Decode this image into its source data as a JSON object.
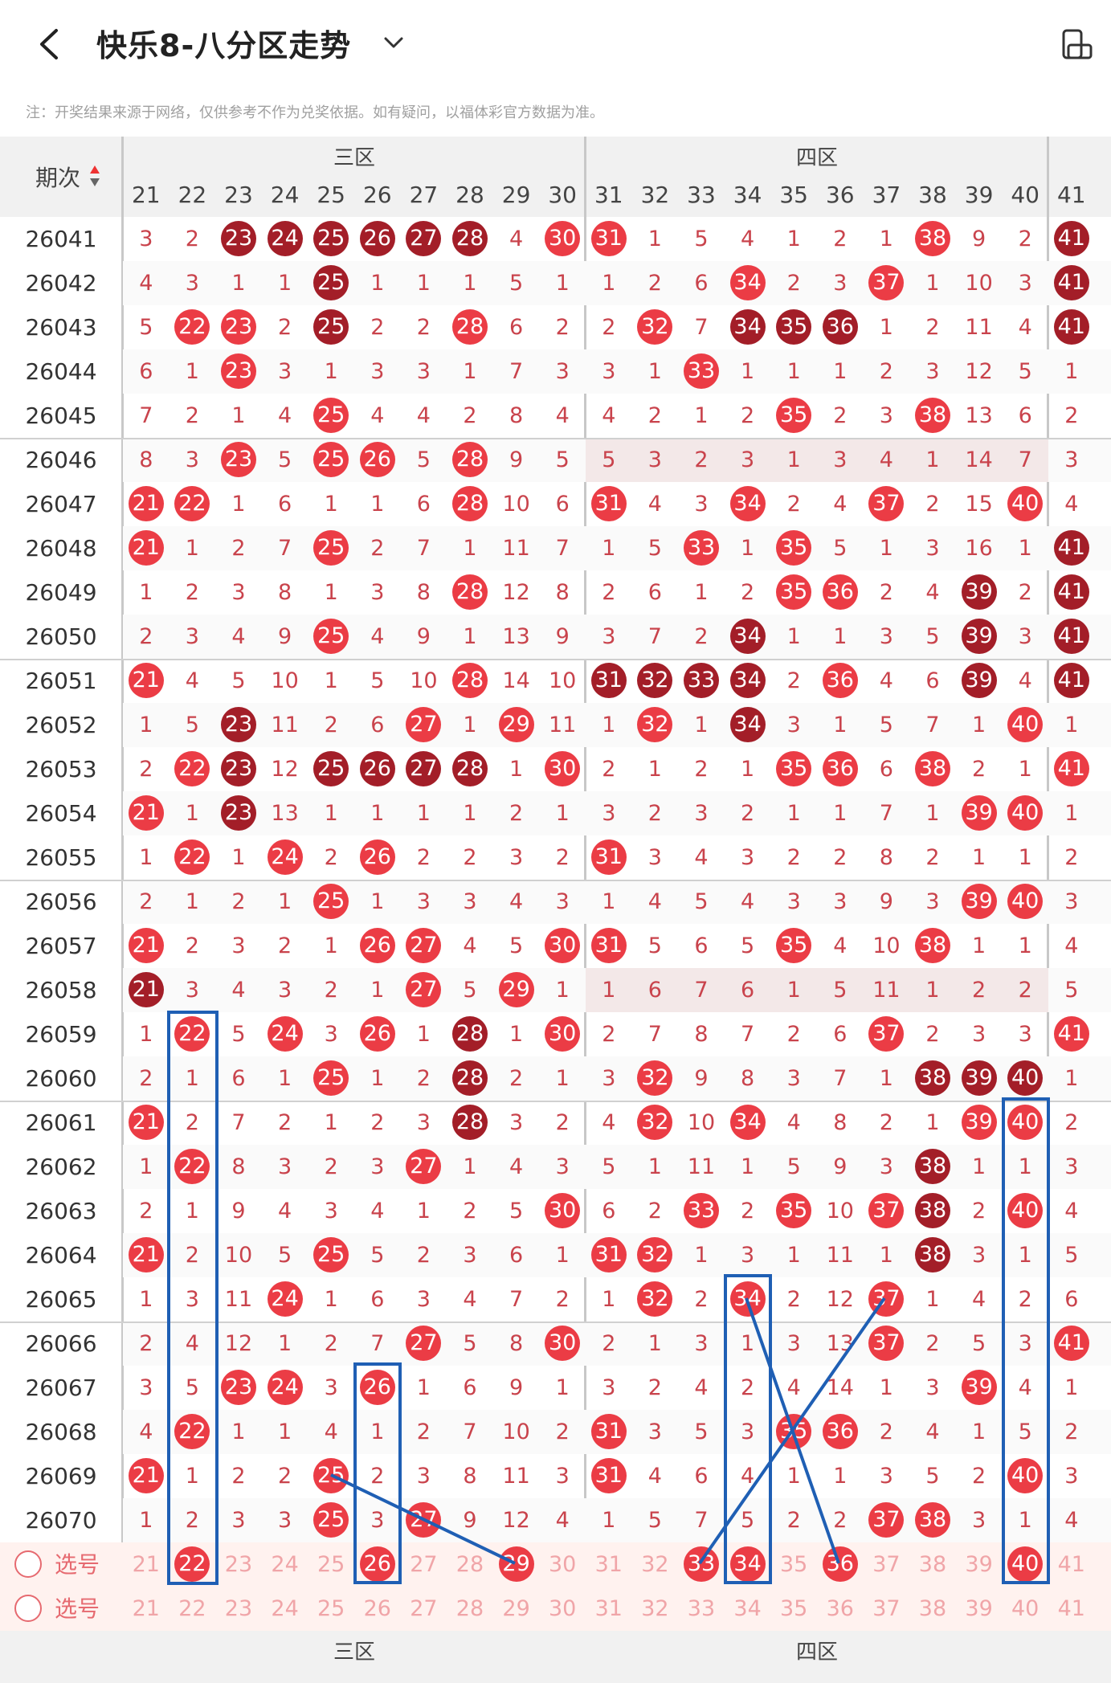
{
  "header": {
    "title": "快乐8-八分区走势",
    "notice": "注：开奖结果来源于网络，仅供参考不作为兑奖依据。如有疑问，以福体彩官方数据为准。",
    "back_icon": "chevron-left-icon",
    "dropdown_icon": "chevron-down-icon",
    "rotate_icon": "screen-rotate-icon"
  },
  "table": {
    "period_header": "期次",
    "zones": [
      "三区",
      "四区"
    ],
    "columns": [
      21,
      22,
      23,
      24,
      25,
      26,
      27,
      28,
      29,
      30,
      31,
      32,
      33,
      34,
      35,
      36,
      37,
      38,
      39,
      40,
      41
    ],
    "rows": [
      {
        "id": "26041",
        "cells": [
          3,
          2,
          "c23",
          "c24",
          "c25",
          "c26",
          "c27",
          "c28",
          4,
          "h30",
          "h31",
          1,
          5,
          4,
          1,
          2,
          1,
          "h38",
          9,
          2,
          "c41"
        ]
      },
      {
        "id": "26042",
        "cells": [
          4,
          3,
          1,
          1,
          "c25",
          1,
          1,
          1,
          5,
          1,
          1,
          2,
          6,
          "h34",
          2,
          3,
          "h37",
          1,
          10,
          3,
          "c41"
        ]
      },
      {
        "id": "26043",
        "cells": [
          5,
          "h22",
          "h23",
          2,
          "c25",
          2,
          2,
          "h28",
          6,
          2,
          2,
          "h32",
          7,
          "c34",
          "c35",
          "c36",
          1,
          2,
          11,
          4,
          "c41"
        ]
      },
      {
        "id": "26044",
        "cells": [
          6,
          1,
          "h23",
          3,
          1,
          3,
          3,
          1,
          7,
          3,
          3,
          1,
          "h33",
          1,
          1,
          1,
          2,
          3,
          12,
          5,
          1
        ]
      },
      {
        "id": "26045",
        "cells": [
          7,
          2,
          1,
          4,
          "h25",
          4,
          4,
          2,
          8,
          4,
          4,
          2,
          1,
          2,
          "h35",
          2,
          3,
          "h38",
          13,
          6,
          2
        ]
      },
      {
        "id": "26046",
        "cells": [
          8,
          3,
          "h23",
          5,
          "h25",
          "h26",
          5,
          "h28",
          9,
          5,
          5,
          3,
          2,
          3,
          1,
          3,
          4,
          1,
          14,
          7,
          3
        ]
      },
      {
        "id": "26047",
        "cells": [
          "h21",
          "h22",
          1,
          6,
          1,
          1,
          6,
          "h28",
          10,
          6,
          "h31",
          4,
          3,
          "h34",
          2,
          4,
          "h37",
          2,
          15,
          "h40",
          4
        ]
      },
      {
        "id": "26048",
        "cells": [
          "h21",
          1,
          2,
          7,
          "h25",
          2,
          7,
          1,
          11,
          7,
          1,
          5,
          "h33",
          1,
          "h35",
          5,
          1,
          3,
          16,
          1,
          "c41"
        ]
      },
      {
        "id": "26049",
        "cells": [
          1,
          2,
          3,
          8,
          1,
          3,
          8,
          "h28",
          12,
          8,
          2,
          6,
          1,
          2,
          "h35",
          "h36",
          2,
          4,
          "c39",
          2,
          "c41"
        ]
      },
      {
        "id": "26050",
        "cells": [
          2,
          3,
          4,
          9,
          "h25",
          4,
          9,
          1,
          13,
          9,
          3,
          7,
          2,
          "c34",
          1,
          1,
          3,
          5,
          "c39",
          3,
          "c41"
        ]
      },
      {
        "id": "26051",
        "cells": [
          "h21",
          4,
          5,
          10,
          1,
          5,
          10,
          "h28",
          14,
          10,
          "c31",
          "c32",
          "c33",
          "c34",
          2,
          "h36",
          4,
          6,
          "c39",
          4,
          "c41"
        ]
      },
      {
        "id": "26052",
        "cells": [
          1,
          5,
          "c23",
          11,
          2,
          6,
          "h27",
          1,
          "h29",
          11,
          1,
          "h32",
          1,
          "c34",
          3,
          1,
          5,
          7,
          1,
          "h40",
          1
        ]
      },
      {
        "id": "26053",
        "cells": [
          2,
          "h22",
          "c23",
          12,
          "c25",
          "c26",
          "c27",
          "c28",
          1,
          "h30",
          2,
          1,
          2,
          1,
          "h35",
          "h36",
          6,
          "h38",
          2,
          1,
          "h41"
        ]
      },
      {
        "id": "26054",
        "cells": [
          "h21",
          1,
          "c23",
          13,
          1,
          1,
          1,
          1,
          2,
          1,
          3,
          2,
          3,
          2,
          1,
          1,
          7,
          1,
          "h39",
          "h40",
          1
        ]
      },
      {
        "id": "26055",
        "cells": [
          1,
          "h22",
          1,
          "h24",
          2,
          "h26",
          2,
          2,
          3,
          2,
          "h31",
          3,
          4,
          3,
          2,
          2,
          8,
          2,
          1,
          1,
          2
        ]
      },
      {
        "id": "26056",
        "cells": [
          2,
          1,
          2,
          1,
          "h25",
          1,
          3,
          3,
          4,
          3,
          1,
          4,
          5,
          4,
          3,
          3,
          9,
          3,
          "h39",
          "h40",
          3
        ]
      },
      {
        "id": "26057",
        "cells": [
          "h21",
          2,
          3,
          2,
          1,
          "h26",
          "h27",
          4,
          5,
          "h30",
          "h31",
          5,
          6,
          5,
          "h35",
          4,
          10,
          "h38",
          1,
          1,
          4
        ]
      },
      {
        "id": "26058",
        "cells": [
          "c21",
          3,
          4,
          3,
          2,
          1,
          "h27",
          5,
          "h29",
          1,
          1,
          6,
          7,
          6,
          1,
          5,
          11,
          1,
          2,
          2,
          5
        ]
      },
      {
        "id": "26059",
        "cells": [
          1,
          "h22",
          5,
          "h24",
          3,
          "h26",
          1,
          "c28",
          1,
          "h30",
          2,
          7,
          8,
          7,
          2,
          6,
          "h37",
          2,
          3,
          3,
          "h41"
        ]
      },
      {
        "id": "26060",
        "cells": [
          2,
          1,
          6,
          1,
          "h25",
          1,
          2,
          "c28",
          2,
          1,
          3,
          "h32",
          9,
          8,
          3,
          7,
          1,
          "c38",
          "c39",
          "c40",
          1
        ]
      },
      {
        "id": "26061",
        "cells": [
          "h21",
          2,
          7,
          2,
          1,
          2,
          3,
          "c28",
          3,
          2,
          4,
          "h32",
          10,
          "h34",
          4,
          8,
          2,
          1,
          "h39",
          "h40",
          2
        ]
      },
      {
        "id": "26062",
        "cells": [
          1,
          "h22",
          8,
          3,
          2,
          3,
          "h27",
          1,
          4,
          3,
          5,
          1,
          11,
          1,
          5,
          9,
          3,
          "c38",
          1,
          1,
          3
        ]
      },
      {
        "id": "26063",
        "cells": [
          2,
          1,
          9,
          4,
          3,
          4,
          1,
          2,
          5,
          "h30",
          6,
          2,
          "h33",
          2,
          "h35",
          10,
          "h37",
          "c38",
          2,
          "h40",
          4
        ]
      },
      {
        "id": "26064",
        "cells": [
          "h21",
          2,
          10,
          5,
          "h25",
          5,
          2,
          3,
          6,
          1,
          "h31",
          "h32",
          1,
          3,
          1,
          11,
          1,
          "c38",
          3,
          1,
          5
        ]
      },
      {
        "id": "26065",
        "cells": [
          1,
          3,
          11,
          "h24",
          1,
          6,
          3,
          4,
          7,
          2,
          1,
          "h32",
          2,
          "h34",
          2,
          12,
          "h37",
          1,
          4,
          2,
          6
        ]
      },
      {
        "id": "26066",
        "cells": [
          2,
          4,
          12,
          1,
          2,
          7,
          "h27",
          5,
          8,
          "h30",
          2,
          1,
          3,
          1,
          3,
          13,
          "h37",
          2,
          5,
          3,
          "h41"
        ]
      },
      {
        "id": "26067",
        "cells": [
          3,
          5,
          "h23",
          "h24",
          3,
          "h26",
          1,
          6,
          9,
          1,
          3,
          2,
          4,
          2,
          4,
          14,
          1,
          3,
          "h39",
          4,
          1
        ]
      },
      {
        "id": "26068",
        "cells": [
          4,
          "h22",
          1,
          1,
          4,
          1,
          2,
          7,
          10,
          2,
          "h31",
          3,
          5,
          3,
          "h35",
          "h36",
          2,
          4,
          1,
          5,
          2
        ]
      },
      {
        "id": "26069",
        "cells": [
          "h21",
          1,
          2,
          2,
          "h25",
          2,
          3,
          8,
          11,
          3,
          "h31",
          4,
          6,
          4,
          1,
          1,
          3,
          5,
          2,
          "h40",
          3
        ]
      },
      {
        "id": "26070",
        "cells": [
          1,
          2,
          3,
          3,
          "h25",
          3,
          "h27",
          9,
          12,
          4,
          1,
          5,
          7,
          5,
          2,
          2,
          "h37",
          "h38",
          3,
          1,
          4
        ]
      }
    ],
    "select_rows": [
      {
        "label": "选号",
        "picked": [
          22,
          26,
          29,
          33,
          34,
          36,
          40
        ]
      },
      {
        "label": "选号",
        "picked": []
      }
    ],
    "footer_zones": [
      "三区",
      "四区"
    ]
  }
}
